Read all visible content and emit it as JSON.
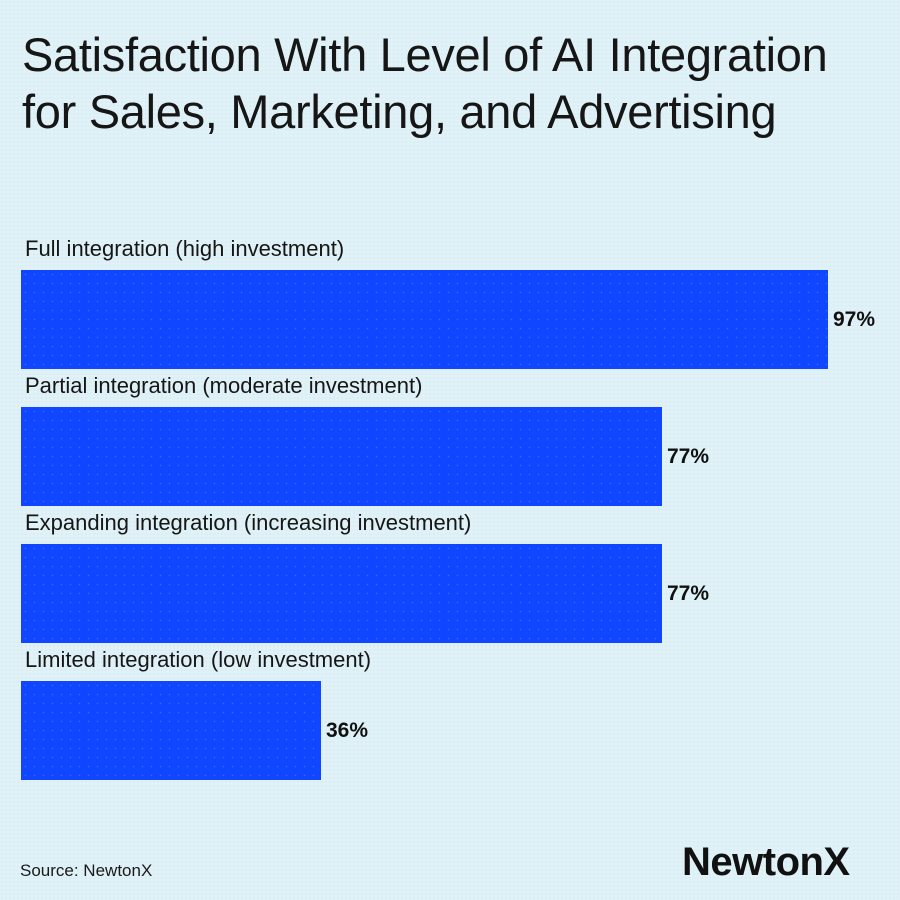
{
  "title": "Satisfaction With Level of AI Integration for Sales, Marketing, and Advertising",
  "source": "Source: NewtonX",
  "logo": "NewtonX",
  "colors": {
    "background": "#E0F2F8",
    "bar": "#1046FF",
    "text": "#161616"
  },
  "bars": [
    {
      "label": "Full integration (high investment)",
      "value": 97,
      "display": "97%"
    },
    {
      "label": "Partial integration (moderate investment)",
      "value": 77,
      "display": "77%"
    },
    {
      "label": "Expanding integration (increasing investment)",
      "value": 77,
      "display": "77%"
    },
    {
      "label": "Limited integration (low investment)",
      "value": 36,
      "display": "36%"
    }
  ],
  "chart_data": {
    "type": "bar",
    "orientation": "horizontal",
    "title": "Satisfaction With Level of AI Integration for Sales, Marketing, and Advertising",
    "categories": [
      "Full integration (high investment)",
      "Partial integration (moderate investment)",
      "Expanding integration (increasing investment)",
      "Limited integration (low investment)"
    ],
    "values": [
      97,
      77,
      77,
      36
    ],
    "value_labels": [
      "97%",
      "77%",
      "77%",
      "36%"
    ],
    "xlabel": "",
    "ylabel": "",
    "unit": "%",
    "xlim": [
      0,
      100
    ],
    "grid": false,
    "legend": null,
    "source": "Source: NewtonX"
  }
}
